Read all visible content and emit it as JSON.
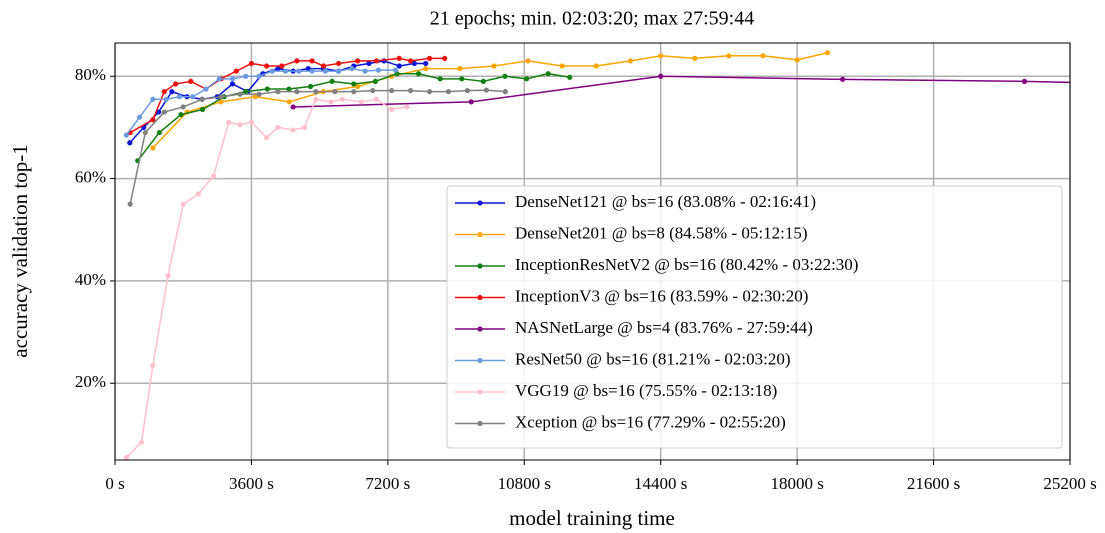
{
  "chart_data": {
    "type": "line",
    "title": "21 epochs; min. 02:03:20; max 27:59:44",
    "x_label": "model training time",
    "y_label": "accuracy validation top-1",
    "xlim": [
      0,
      25200
    ],
    "ylim": [
      5,
      86.5
    ],
    "xticks": [
      {
        "value": 0,
        "label": "0 s"
      },
      {
        "value": 3600,
        "label": "3600 s"
      },
      {
        "value": 7200,
        "label": "7200 s"
      },
      {
        "value": 10800,
        "label": "10800 s"
      },
      {
        "value": 14400,
        "label": "14400 s"
      },
      {
        "value": 18000,
        "label": "18000 s"
      },
      {
        "value": 21600,
        "label": "21600 s"
      },
      {
        "value": 25200,
        "label": "25200 s"
      }
    ],
    "yticks": [
      {
        "value": 20,
        "label": "20%"
      },
      {
        "value": 40,
        "label": "40%"
      },
      {
        "value": 60,
        "label": "60%"
      },
      {
        "value": 80,
        "label": "80%"
      }
    ],
    "grid": true,
    "legend": "lower right",
    "series": [
      {
        "name": "DenseNet121 @ bs=16 (83.08% - 02:16:41)",
        "color": "#0a16d8",
        "x": [
          390,
          760,
          1150,
          1500,
          1900,
          2300,
          2700,
          3100,
          3500,
          3900,
          4300,
          4700,
          5100,
          5500,
          5900,
          6300,
          6700,
          7100,
          7500,
          7900,
          8200
        ],
        "values": [
          67,
          70,
          73,
          77,
          76,
          75.5,
          76,
          78.5,
          77,
          80.5,
          81.5,
          81,
          81.5,
          81.5,
          81,
          82,
          82.5,
          83,
          82,
          82.5,
          82.5
        ]
      },
      {
        "name": "DenseNet201 @ bs=8 (84.58% - 05:12:15)",
        "color": "#ffa500",
        "x": [
          1000,
          1900,
          2800,
          3700,
          4600,
          5500,
          6400,
          7300,
          8200,
          9100,
          10000,
          10900,
          11800,
          12700,
          13600,
          14400,
          15300,
          16200,
          17100,
          18000,
          18800
        ],
        "values": [
          66,
          73,
          75,
          76,
          75,
          77,
          78,
          80,
          81.5,
          81.5,
          82,
          83,
          82,
          82,
          83,
          84,
          83.5,
          84,
          84,
          83.2,
          84.6
        ]
      },
      {
        "name": "InceptionResNetV2 @ bs=16 (80.42% - 03:22:30)",
        "color": "#108010",
        "x": [
          600,
          1170,
          1740,
          2310,
          2880,
          3450,
          4020,
          4590,
          5160,
          5730,
          6300,
          6870,
          7440,
          8010,
          8580,
          9150,
          9720,
          10290,
          10860,
          11430,
          12000
        ],
        "values": [
          63.5,
          69,
          72.5,
          73.5,
          76,
          77,
          77.5,
          77.5,
          78,
          79,
          78.5,
          79,
          80.5,
          80.5,
          79.5,
          79.5,
          79,
          80,
          79.5,
          80.5,
          79.8
        ]
      },
      {
        "name": "InceptionV3 @ bs=16 (83.59% - 02:30:20)",
        "color": "#ee1010",
        "x": [
          400,
          1000,
          1300,
          1600,
          2000,
          2400,
          2800,
          3200,
          3600,
          4000,
          4400,
          4800,
          5200,
          5500,
          5900,
          6400,
          6900,
          7500,
          7800,
          8300,
          8700
        ],
        "values": [
          69,
          71.5,
          77,
          78.5,
          79,
          77.5,
          79.5,
          81,
          82.5,
          82,
          82,
          83,
          83,
          82,
          82.5,
          83,
          83,
          83.5,
          83,
          83.5,
          83.5
        ]
      },
      {
        "name": "NASNetLarge @ bs=4 (83.76% - 27:59:44)",
        "color": "#800080",
        "x": [
          4700,
          9400,
          14400,
          19200,
          24000,
          27000
        ],
        "values": [
          74,
          75,
          80,
          79.4,
          79,
          78.5
        ]
      },
      {
        "name": "ResNet50 @ bs=16 (81.21% - 02:03:20)",
        "color": "#6a9be0",
        "x": [
          300,
          650,
          1000,
          1350,
          1700,
          2050,
          2400,
          2750,
          3100,
          3450,
          3800,
          4150,
          4500,
          4850,
          5200,
          5550,
          5900,
          6250,
          6600,
          6950,
          7400
        ],
        "values": [
          68.5,
          72,
          75.5,
          75.5,
          76,
          76,
          77.5,
          79.5,
          79.5,
          80,
          80,
          81,
          81,
          81,
          81,
          81,
          81,
          81.5,
          81,
          81.2,
          81.2
        ]
      },
      {
        "name": "VGG19 @ bs=16 (75.55% - 02:13:18)",
        "color": "#ffc0cb",
        "x": [
          300,
          700,
          1000,
          1400,
          1800,
          2200,
          2600,
          3000,
          3300,
          3600,
          4000,
          4300,
          4700,
          5000,
          5300,
          5700,
          6000,
          6500,
          6900,
          7300,
          7700
        ],
        "values": [
          5.5,
          8.5,
          23.5,
          41,
          55,
          57,
          60.5,
          71,
          70.5,
          71,
          68,
          70,
          69.5,
          70,
          75.5,
          75,
          75.5,
          75,
          75.5,
          73.5,
          74
        ]
      },
      {
        "name": "Xception @ bs=16 (77.29% - 02:55:20)",
        "color": "#808080",
        "x": [
          400,
          800,
          1300,
          1800,
          2300,
          2800,
          3300,
          3800,
          4300,
          4800,
          5300,
          5800,
          6300,
          6800,
          7300,
          7800,
          8300,
          8800,
          9300,
          9800,
          10300
        ],
        "values": [
          55,
          69,
          73,
          74,
          75.5,
          76,
          76.5,
          76.5,
          77,
          77,
          77,
          77,
          77,
          77.2,
          77.2,
          77.2,
          77,
          77,
          77.2,
          77.3,
          77
        ]
      }
    ]
  }
}
